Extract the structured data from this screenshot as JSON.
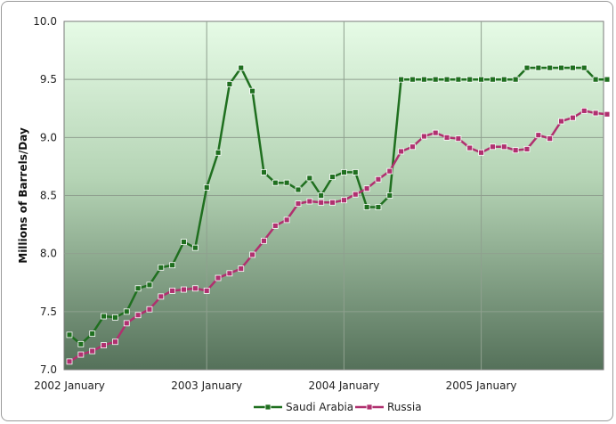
{
  "chart_data": {
    "type": "line",
    "title": "",
    "xlabel": "",
    "ylabel": "Millions of Barrels/Day",
    "ylim": [
      7.0,
      10.0
    ],
    "yticks": [
      "7.0",
      "7.5",
      "8.0",
      "8.5",
      "9.0",
      "9.5",
      "10.0"
    ],
    "xticks": [
      "2002 January",
      "2003 January",
      "2004 January",
      "2005 January"
    ],
    "x_start": "2002-01",
    "x_end": "2005-12",
    "grid": true,
    "legend_position": "bottom",
    "series": [
      {
        "name": "Saudi Arabia",
        "color": "#1f6f1f",
        "values": [
          7.3,
          7.22,
          7.31,
          7.46,
          7.45,
          7.5,
          7.7,
          7.73,
          7.88,
          7.9,
          8.1,
          8.05,
          8.57,
          8.87,
          9.46,
          9.6,
          9.4,
          8.7,
          8.61,
          8.61,
          8.55,
          8.65,
          8.5,
          8.66,
          8.7,
          8.7,
          8.4,
          8.4,
          8.5,
          9.5,
          9.5,
          9.5,
          9.5,
          9.5,
          9.5,
          9.5,
          9.5,
          9.5,
          9.5,
          9.5,
          9.6,
          9.6,
          9.6,
          9.6,
          9.6,
          9.6,
          9.5,
          9.5
        ]
      },
      {
        "name": "Russia",
        "color": "#b0306f",
        "values": [
          7.07,
          7.13,
          7.16,
          7.21,
          7.24,
          7.4,
          7.47,
          7.52,
          7.63,
          7.68,
          7.69,
          7.7,
          7.68,
          7.79,
          7.83,
          7.87,
          7.99,
          8.11,
          8.24,
          8.29,
          8.43,
          8.45,
          8.44,
          8.44,
          8.46,
          8.51,
          8.56,
          8.64,
          8.71,
          8.88,
          8.92,
          9.01,
          9.04,
          9.0,
          8.99,
          8.91,
          8.87,
          8.92,
          8.92,
          8.89,
          8.9,
          9.02,
          8.99,
          9.14,
          9.17,
          9.23,
          9.21,
          9.2
        ]
      }
    ]
  }
}
